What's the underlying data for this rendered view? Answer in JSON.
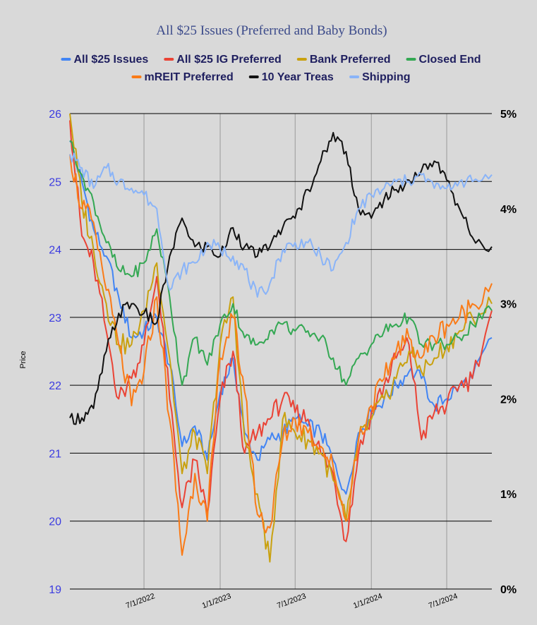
{
  "chart_data": {
    "type": "line",
    "title": "All $25 Issues (Preferred and Baby Bonds)",
    "ylabel": "Price",
    "ylim": [
      19,
      26
    ],
    "yticks": [
      19,
      20,
      21,
      22,
      23,
      24,
      25,
      26
    ],
    "y2lim": [
      0,
      5
    ],
    "y2ticks": [
      "0%",
      "1%",
      "2%",
      "3%",
      "4%",
      "5%"
    ],
    "xlim": [
      "2022-01-03",
      "2024-10-18"
    ],
    "xticks": [
      {
        "date": "2022-07-01",
        "label": "7/1/2022"
      },
      {
        "date": "2023-01-01",
        "label": "1/1/2023"
      },
      {
        "date": "2023-07-01",
        "label": "7/1/2023"
      },
      {
        "date": "2024-01-01",
        "label": "1/1/2024"
      },
      {
        "date": "2024-07-01",
        "label": "7/1/2024"
      }
    ],
    "legend_position": "top",
    "grid": true,
    "x": [
      "2022-01-03",
      "2022-02-01",
      "2022-03-01",
      "2022-04-01",
      "2022-05-01",
      "2022-06-01",
      "2022-07-01",
      "2022-08-01",
      "2022-09-01",
      "2022-10-01",
      "2022-11-01",
      "2022-12-01",
      "2023-01-01",
      "2023-02-01",
      "2023-03-01",
      "2023-04-01",
      "2023-05-01",
      "2023-06-01",
      "2023-07-01",
      "2023-08-01",
      "2023-09-01",
      "2023-10-01",
      "2023-11-01",
      "2023-12-01",
      "2024-01-01",
      "2024-02-01",
      "2024-03-01",
      "2024-04-01",
      "2024-05-01",
      "2024-06-01",
      "2024-07-01",
      "2024-08-01",
      "2024-09-01",
      "2024-10-18"
    ],
    "series": [
      {
        "name": "All $25 Issues",
        "color": "#4285f4",
        "axis": "left",
        "values": [
          25.6,
          25.0,
          24.3,
          23.9,
          23.3,
          22.7,
          22.8,
          23.0,
          22.3,
          21.1,
          21.4,
          20.9,
          21.9,
          22.4,
          21.3,
          20.9,
          21.2,
          21.3,
          21.5,
          21.4,
          21.3,
          20.9,
          20.4,
          21.3,
          21.6,
          21.8,
          22.0,
          22.2,
          22.1,
          21.7,
          21.8,
          22.0,
          22.1,
          22.7
        ]
      },
      {
        "name": "All $25 IG Preferred",
        "color": "#ea4335",
        "axis": "left",
        "values": [
          25.9,
          24.2,
          23.8,
          22.8,
          21.8,
          22.1,
          22.6,
          23.6,
          21.8,
          20.2,
          20.9,
          20.1,
          21.8,
          22.5,
          21.0,
          21.3,
          21.5,
          21.8,
          21.6,
          21.5,
          21.0,
          20.7,
          19.7,
          21.0,
          21.6,
          22.0,
          22.4,
          22.6,
          21.2,
          21.6,
          21.7,
          22.0,
          22.1,
          23.1
        ]
      },
      {
        "name": "Bank Preferred",
        "color": "#c9a10f",
        "axis": "left",
        "values": [
          26.0,
          24.7,
          24.0,
          23.2,
          22.6,
          22.6,
          23.1,
          23.8,
          22.4,
          20.7,
          21.3,
          20.7,
          22.6,
          23.3,
          21.2,
          20.4,
          19.4,
          21.5,
          21.3,
          21.2,
          21.0,
          20.6,
          20.0,
          21.2,
          21.5,
          21.8,
          22.1,
          22.5,
          22.2,
          22.4,
          22.6,
          22.8,
          23.0,
          23.2
        ]
      },
      {
        "name": "Closed End",
        "color": "#34a853",
        "axis": "left",
        "values": [
          25.6,
          25.1,
          24.7,
          24.1,
          23.7,
          23.6,
          23.8,
          24.3,
          23.3,
          22.0,
          22.7,
          22.3,
          22.9,
          23.2,
          22.7,
          22.6,
          22.8,
          22.9,
          22.8,
          22.8,
          22.7,
          22.4,
          22.0,
          22.4,
          22.6,
          22.8,
          22.9,
          23.0,
          22.6,
          22.6,
          22.6,
          22.7,
          22.9,
          23.1
        ]
      },
      {
        "name": "mREIT Preferred",
        "color": "#fa7b17",
        "axis": "left",
        "values": [
          25.4,
          24.6,
          24.4,
          23.4,
          22.6,
          21.7,
          22.2,
          23.3,
          21.5,
          19.5,
          20.7,
          20.0,
          22.4,
          23.0,
          21.9,
          20.1,
          19.9,
          21.2,
          21.5,
          21.3,
          21.1,
          20.8,
          20.0,
          21.2,
          21.7,
          22.1,
          22.5,
          22.7,
          22.4,
          22.7,
          22.9,
          23.0,
          23.2,
          23.5
        ]
      },
      {
        "name": "10 Year Treas",
        "color": "#111111",
        "axis": "right",
        "values": [
          1.8,
          1.8,
          1.9,
          2.5,
          2.9,
          3.0,
          2.9,
          2.8,
          3.5,
          3.9,
          3.6,
          3.6,
          3.5,
          3.8,
          3.6,
          3.5,
          3.6,
          3.8,
          3.9,
          4.2,
          4.5,
          4.8,
          4.6,
          4.0,
          3.9,
          4.1,
          4.2,
          4.3,
          4.4,
          4.5,
          4.3,
          4.0,
          3.7,
          3.6
        ]
      },
      {
        "name": "Shipping",
        "color": "#8ab4f8",
        "axis": "left",
        "values": [
          25.4,
          25.2,
          24.9,
          25.2,
          25.0,
          24.9,
          24.8,
          24.6,
          23.4,
          23.7,
          23.8,
          24.1,
          24.0,
          23.9,
          23.7,
          23.3,
          23.5,
          24.0,
          24.1,
          24.1,
          23.9,
          23.7,
          24.1,
          24.6,
          24.8,
          24.9,
          25.0,
          25.0,
          25.1,
          24.9,
          24.9,
          25.0,
          25.0,
          25.1
        ]
      }
    ]
  }
}
